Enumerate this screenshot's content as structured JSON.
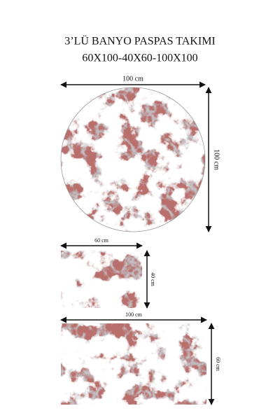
{
  "header": {
    "title": "3’LÜ BANYO PASPAS TAKIMI",
    "subtitle": "60X100-40X60-100X100"
  },
  "products": [
    {
      "shape": "circle",
      "width_label": "100 cm",
      "height_label": "100 cm"
    },
    {
      "shape": "rectangle",
      "width_label": "60 cm",
      "height_label": "40 cm"
    },
    {
      "shape": "rectangle",
      "width_label": "100 cm",
      "height_label": "60 cm"
    }
  ]
}
